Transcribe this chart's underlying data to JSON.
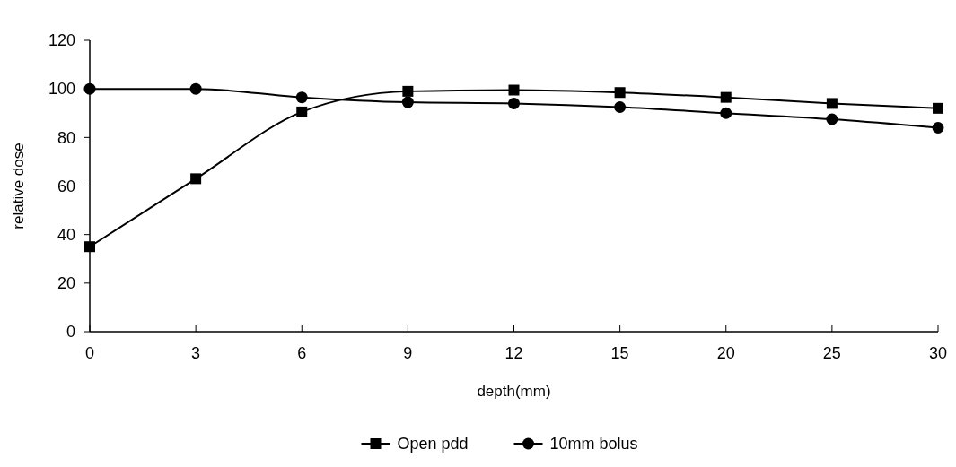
{
  "chart_data": {
    "type": "line",
    "xlabel": "depth(mm)",
    "ylabel": "relative dose",
    "categories": [
      "0",
      "3",
      "6",
      "9",
      "12",
      "15",
      "20",
      "25",
      "30"
    ],
    "series": [
      {
        "name": "Open pdd",
        "color": "#000000",
        "marker": "square",
        "values": [
          35,
          63,
          90.5,
          99,
          99.5,
          98.5,
          96.5,
          94,
          92
        ]
      },
      {
        "name": "10mm bolus",
        "color": "#000000",
        "marker": "circle",
        "values": [
          100,
          100,
          96.5,
          94.5,
          94,
          92.5,
          90,
          87.5,
          84
        ]
      }
    ],
    "ylim": [
      0,
      120
    ],
    "yticks": [
      0,
      20,
      40,
      60,
      80,
      100,
      120
    ],
    "grid": false,
    "legend": "bottom",
    "line_style": "solid"
  }
}
